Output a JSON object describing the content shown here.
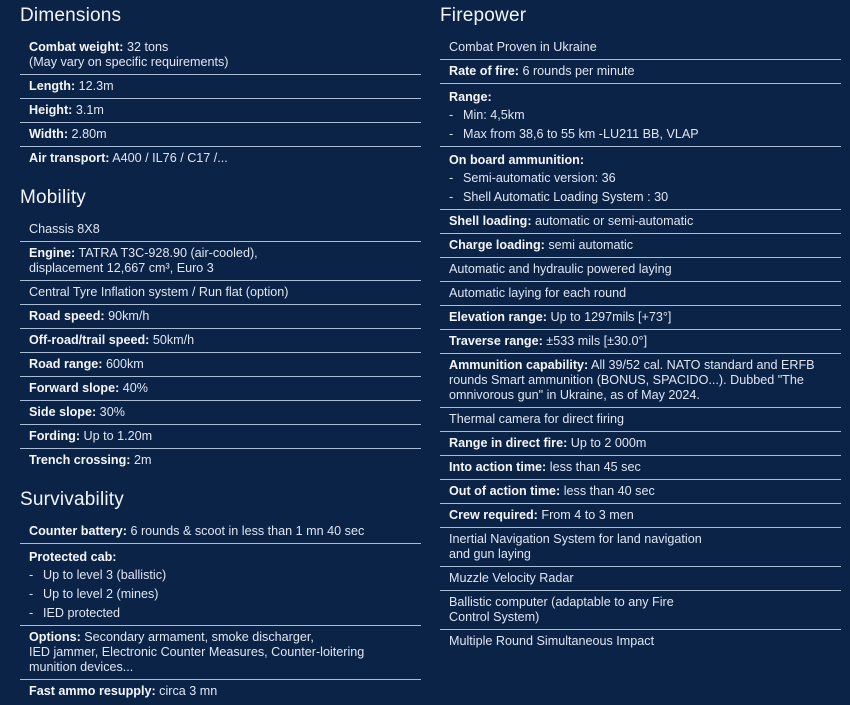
{
  "colors": {
    "background": "#0c2348",
    "divider": "#a9bcd8"
  },
  "left": [
    {
      "title": "Dimensions",
      "items": [
        {
          "label": "Combat weight:",
          "value": " 32 tons",
          "extra": [
            "(May vary on specific requirements)"
          ]
        },
        {
          "label": "Length:",
          "value": " 12.3m"
        },
        {
          "label": "Height:",
          "value": " 3.1m"
        },
        {
          "label": "Width:",
          "value": " 2.80m"
        },
        {
          "label": "Air transport:",
          "value": " A400 / IL76 / C17 /..."
        }
      ]
    },
    {
      "title": "Mobility",
      "items": [
        {
          "value": "Chassis 8X8"
        },
        {
          "label": "Engine:",
          "value": " TATRA T3C-928.90 (air-cooled),",
          "extra": [
            "displacement 12,667 cm³, Euro 3"
          ]
        },
        {
          "value": "Central Tyre Inflation system / Run flat (option)"
        },
        {
          "label": "Road speed:",
          "value": " 90km/h"
        },
        {
          "label": "Off-road/trail speed:",
          "value": " 50km/h"
        },
        {
          "label": "Road range:",
          "value": " 600km"
        },
        {
          "label": "Forward slope:",
          "value": " 40%"
        },
        {
          "label": "Side slope:",
          "value": " 30%"
        },
        {
          "label": "Fording:",
          "value": " Up to 1.20m"
        },
        {
          "label": "Trench crossing:",
          "value": " 2m"
        }
      ]
    },
    {
      "title": "Survivability",
      "items": [
        {
          "label": "Counter battery:",
          "value": " 6 rounds & scoot in less than 1 mn 40 sec"
        },
        {
          "label": "Protected cab:",
          "bullets": [
            "Up to level 3 (ballistic)",
            "Up to level 2 (mines)",
            "IED protected"
          ]
        },
        {
          "label": "Options:",
          "value": " Secondary armament, smoke discharger,",
          "extra": [
            "IED jammer, Electronic Counter Measures, Counter-loitering",
            "munition devices..."
          ]
        },
        {
          "label": "Fast ammo resupply:",
          "value": " circa 3 mn"
        }
      ]
    }
  ],
  "right": [
    {
      "title": "Firepower",
      "items": [
        {
          "value": "Combat Proven in Ukraine"
        },
        {
          "label": "Rate of fire:",
          "value": " 6 rounds per minute"
        },
        {
          "label": "Range:",
          "bullets": [
            "Min: 4,5km",
            "Max from 38,6 to 55 km -LU211 BB, VLAP"
          ]
        },
        {
          "label": "On board ammunition:",
          "bullets": [
            "Semi-automatic version: 36",
            "Shell Automatic Loading System : 30"
          ]
        },
        {
          "label": "Shell loading:",
          "value": " automatic or semi-automatic"
        },
        {
          "label": "Charge loading:",
          "value": " semi automatic"
        },
        {
          "value": "Automatic and hydraulic powered laying"
        },
        {
          "value": "Automatic laying for each round"
        },
        {
          "label": "Elevation range:",
          "value": " Up to 1297mils [+73°]"
        },
        {
          "label": "Traverse range:",
          "value": " ±533 mils [±30.0°]"
        },
        {
          "label": "Ammunition capability:",
          "value": " All 39/52 cal. NATO standard and ERFB",
          "extra": [
            "rounds Smart ammunition (BONUS, SPACIDO...). Dubbed \"The",
            "omnivorous gun\" in Ukraine, as of May 2024."
          ]
        },
        {
          "value": "Thermal camera for direct firing"
        },
        {
          "label": "Range in direct fire:",
          "value": " Up to 2 000m"
        },
        {
          "label": "Into action time:",
          "value": " less than 45 sec"
        },
        {
          "label": "Out of action time:",
          "value": " less than 40 sec"
        },
        {
          "label": "Crew required:",
          "value": " From 4 to 3 men"
        },
        {
          "value": "Inertial Navigation System for land navigation",
          "extra": [
            "and gun laying"
          ]
        },
        {
          "value": "Muzzle Velocity Radar"
        },
        {
          "value": "Ballistic computer (adaptable to any Fire",
          "extra": [
            "Control System)"
          ]
        },
        {
          "value": "Multiple Round Simultaneous Impact"
        }
      ]
    }
  ]
}
